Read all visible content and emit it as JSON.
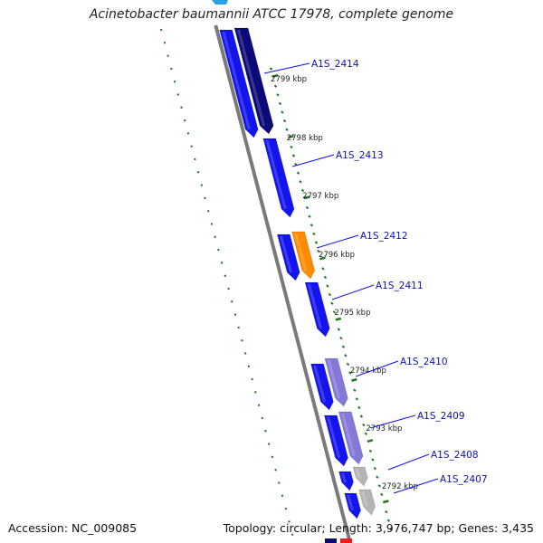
{
  "title": "Acinetobacter baumannii ATCC 17978, complete genome",
  "footer": {
    "accession": "Accession: NC_009085",
    "stats": "Topology: circular; Length: 3,976,747 bp; Genes: 3,435"
  },
  "colors": {
    "backbone": "#7a7a7a",
    "tick": "#1e7a1e",
    "label_line": "#1010ee",
    "label_text": "#1010aa",
    "gene_blue": "#1414ee",
    "gene_navy": "#0a0a78",
    "gene_orange": "#ff8c00",
    "gene_lavender": "#8478d8",
    "gene_gray": "#b4b4b4",
    "gene_light_blue": "#2aa0e6",
    "gene_red": "#ee1a1a"
  },
  "kbp_marks": [
    "2799 kbp",
    "2798 kbp",
    "2797 kbp",
    "2796 kbp",
    "2795 kbp",
    "2794 kbp",
    "2793 kbp",
    "2792 kbp"
  ],
  "gene_labels": [
    "A1S_2414",
    "A1S_2413",
    "A1S_2412",
    "A1S_2411",
    "A1S_2410",
    "A1S_2409",
    "A1S_2408",
    "A1S_2407"
  ]
}
